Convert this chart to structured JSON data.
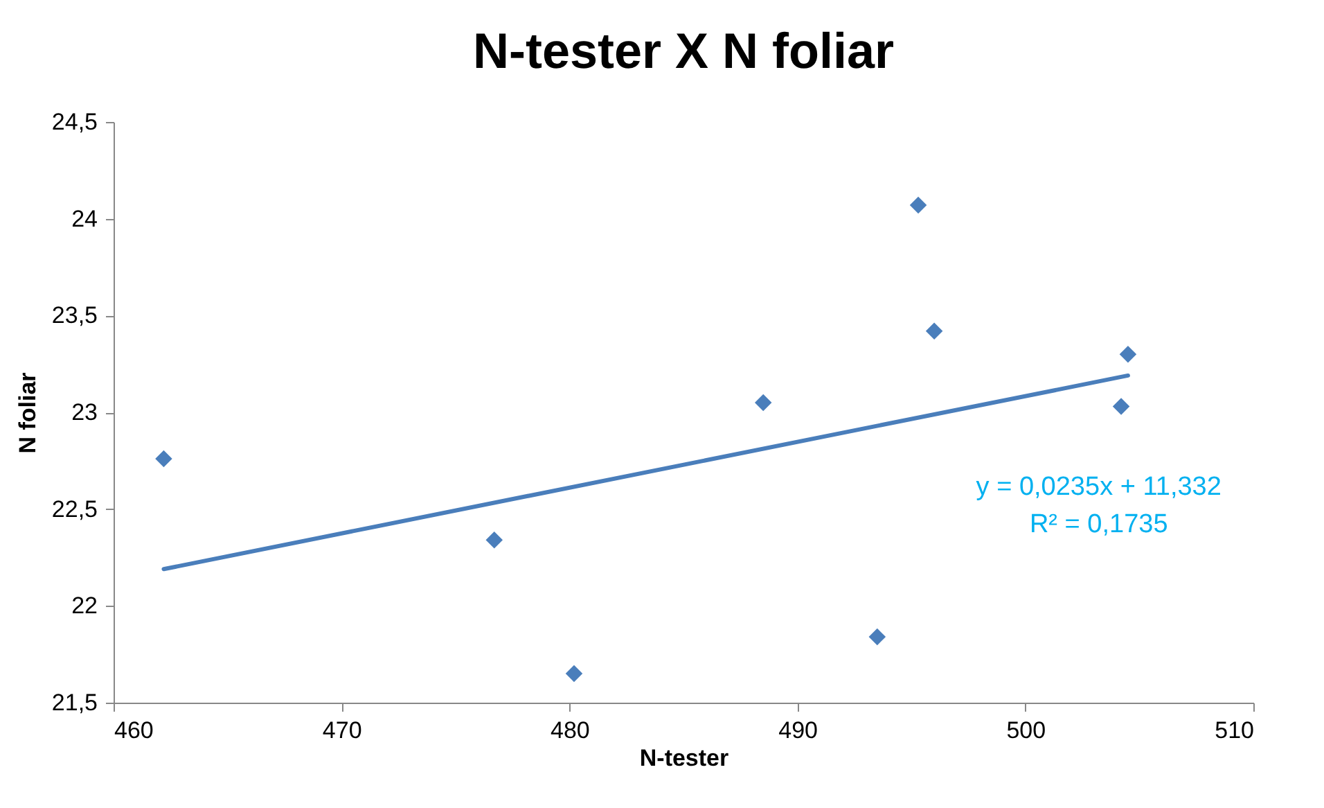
{
  "chart_data": {
    "type": "scatter",
    "title": "N-tester X N foliar",
    "xlabel": "N-tester",
    "ylabel": "N foliar",
    "series": [
      {
        "type": "scatter",
        "color": "#4a7ebb",
        "marker": "diamond",
        "x": [
          462.2,
          476.7,
          480.2,
          488.5,
          493.5,
          495.3,
          496.0,
          504.2,
          504.5
        ],
        "values": [
          22.76,
          22.34,
          21.65,
          23.05,
          21.84,
          24.07,
          23.42,
          23.03,
          23.3
        ]
      },
      {
        "type": "line",
        "color": "#4a7ebb",
        "marker": "none",
        "line_style": "solid",
        "x": [
          462.2,
          504.5
        ],
        "values": [
          22.19,
          23.19
        ]
      }
    ],
    "annotations": [
      "y = 0,0235x + 11,332",
      "R² = 0,1735"
    ],
    "xlim": [
      460,
      510
    ],
    "xticks": [
      460,
      470,
      480,
      490,
      500,
      510
    ],
    "ylim": [
      21.5,
      24.5
    ],
    "yticks": [
      {
        "value": 21.5,
        "label": "21,5"
      },
      22,
      {
        "value": 22.5,
        "label": "22,5"
      },
      23,
      {
        "value": 23.5,
        "label": "23,5"
      },
      24,
      {
        "value": 24.5,
        "label": "24,5"
      }
    ],
    "grid": false
  }
}
